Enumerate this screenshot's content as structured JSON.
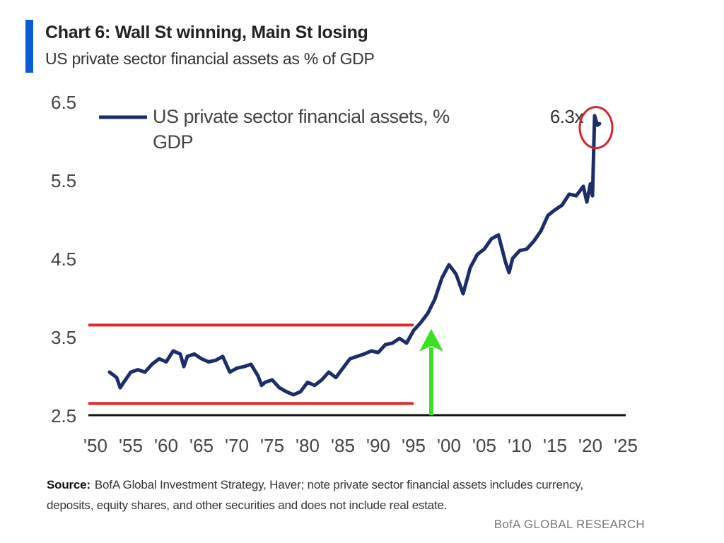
{
  "header": {
    "title": "Chart 6: Wall St winning, Main St losing",
    "subtitle": "US private sector financial assets as % of GDP"
  },
  "chart_data": {
    "type": "line",
    "xlabel": "",
    "ylabel": "",
    "ylim": [
      2.5,
      6.5
    ],
    "xlim": [
      1950,
      2025
    ],
    "y_ticks": [
      "6.5",
      "5.5",
      "4.5",
      "3.5",
      "2.5"
    ],
    "y_tick_values": [
      6.5,
      5.5,
      4.5,
      3.5,
      2.5
    ],
    "x_ticks": [
      "'50",
      "'55",
      "'60",
      "'65",
      "'70",
      "'75",
      "'80",
      "'85",
      "'90",
      "'95",
      "'00",
      "'05",
      "'10",
      "'15",
      "'20",
      "'25"
    ],
    "x_tick_values": [
      1950,
      1955,
      1960,
      1965,
      1970,
      1975,
      1980,
      1985,
      1990,
      1995,
      2000,
      2005,
      2010,
      2015,
      2020,
      2025
    ],
    "grid": false,
    "legend_position": "top-left",
    "series": [
      {
        "name": "US private sector financial assets, % GDP",
        "color": "#1b2d6b",
        "x": [
          1952.0,
          1953.0,
          1953.5,
          1954.0,
          1955.0,
          1956.0,
          1957.0,
          1958.0,
          1959.0,
          1960.0,
          1961.0,
          1962.0,
          1962.5,
          1963.0,
          1964.0,
          1965.0,
          1966.0,
          1967.0,
          1968.0,
          1968.5,
          1969.0,
          1970.0,
          1971.0,
          1972.0,
          1973.0,
          1973.5,
          1974.0,
          1975.0,
          1976.0,
          1977.0,
          1978.0,
          1979.0,
          1980.0,
          1981.0,
          1982.0,
          1983.0,
          1984.0,
          1985.0,
          1986.0,
          1987.0,
          1988.0,
          1989.0,
          1990.0,
          1991.0,
          1992.0,
          1993.0,
          1994.0,
          1995.0,
          1996.0,
          1997.0,
          1998.0,
          1999.0,
          2000.0,
          2001.0,
          2002.0,
          2003.0,
          2004.0,
          2005.0,
          2006.0,
          2007.0,
          2008.0,
          2008.5,
          2009.0,
          2010.0,
          2011.0,
          2012.0,
          2013.0,
          2014.0,
          2015.0,
          2016.0,
          2017.0,
          2018.0,
          2019.0,
          2019.5,
          2020.0,
          2020.3,
          2020.6,
          2021.0,
          2021.3
        ],
        "y": [
          3.05,
          2.98,
          2.85,
          2.92,
          3.05,
          3.08,
          3.05,
          3.15,
          3.22,
          3.18,
          3.32,
          3.28,
          3.12,
          3.25,
          3.28,
          3.22,
          3.18,
          3.2,
          3.25,
          3.15,
          3.05,
          3.1,
          3.12,
          3.15,
          3.0,
          2.88,
          2.92,
          2.95,
          2.85,
          2.8,
          2.76,
          2.8,
          2.92,
          2.88,
          2.95,
          3.05,
          2.98,
          3.1,
          3.22,
          3.25,
          3.28,
          3.32,
          3.3,
          3.4,
          3.42,
          3.48,
          3.42,
          3.58,
          3.68,
          3.8,
          3.98,
          4.25,
          4.42,
          4.3,
          4.05,
          4.38,
          4.55,
          4.62,
          4.75,
          4.8,
          4.45,
          4.32,
          4.5,
          4.6,
          4.62,
          4.72,
          4.85,
          5.05,
          5.12,
          5.18,
          5.32,
          5.3,
          5.42,
          5.22,
          5.45,
          5.3,
          6.32,
          6.2,
          6.22
        ]
      }
    ],
    "reference_lines": [
      {
        "y": 3.65,
        "x_start": 1950,
        "x_end": 1995,
        "color": "#e3262a"
      },
      {
        "y": 2.65,
        "x_start": 1950,
        "x_end": 1995,
        "color": "#e3262a"
      }
    ],
    "arrow": {
      "x": 1997.5,
      "y_from": 2.5,
      "y_to": 3.6,
      "color": "#39e21f"
    },
    "highlight_circle": {
      "x": 2020.8,
      "y": 6.17,
      "color": "#d8242a"
    },
    "annotations": [
      {
        "text": "6.3x",
        "x": 2018.5,
        "y": 6.3
      }
    ]
  },
  "source": {
    "label": "Source:",
    "text": "BofA Global Investment Strategy, Haver; note private sector financial assets includes currency, deposits, equity shares, and other securities and does not include real estate."
  },
  "footer": {
    "brand": "BofA GLOBAL RESEARCH"
  }
}
